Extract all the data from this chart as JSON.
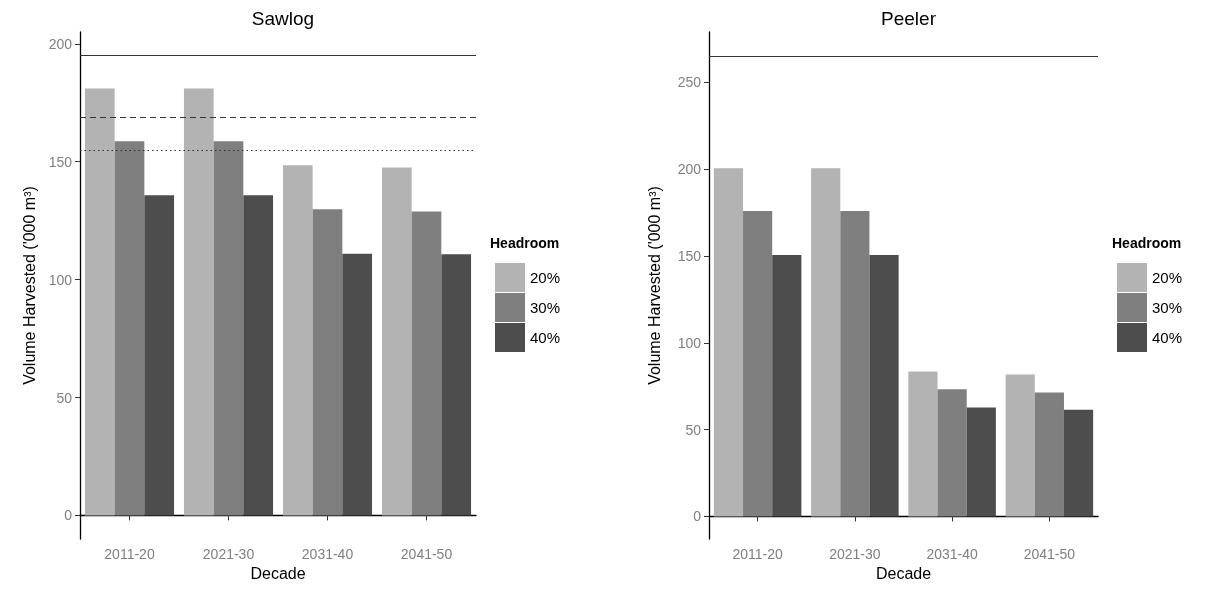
{
  "chart_data": [
    {
      "type": "bar",
      "title": "Sawlog",
      "xlabel": "Decade",
      "ylabel": "Volume Harvested ('000 m³)",
      "legend_title": "Headroom",
      "legend": "right",
      "grid": false,
      "categories": [
        "2011-20",
        "2021-30",
        "2031-40",
        "2041-50"
      ],
      "series": [
        {
          "name": "20%",
          "color": "#b3b3b3",
          "values": [
            181,
            181,
            148.5,
            147.5
          ]
        },
        {
          "name": "30%",
          "color": "#7f7f7f",
          "values": [
            158.7,
            158.7,
            129.8,
            128.9
          ]
        },
        {
          "name": "40%",
          "color": "#4d4d4d",
          "values": [
            135.8,
            135.8,
            111,
            110.7
          ]
        }
      ],
      "ylim": [
        -10,
        205
      ],
      "yticks": [
        0,
        50,
        100,
        150,
        200
      ],
      "ref_lines": [
        {
          "axis": "y",
          "value": 195,
          "color": "#333333",
          "line_style": "solid"
        },
        {
          "axis": "y",
          "value": 169,
          "color": "#333333",
          "line_style": "dashed"
        },
        {
          "axis": "y",
          "value": 155,
          "color": "#333333",
          "line_style": "dotted"
        }
      ]
    },
    {
      "type": "bar",
      "title": "Peeler",
      "xlabel": "Decade",
      "ylabel": "Volume Harvested ('000 m³)",
      "legend_title": "Headroom",
      "legend": "right",
      "grid": false,
      "categories": [
        "2011-20",
        "2021-30",
        "2031-40",
        "2041-50"
      ],
      "series": [
        {
          "name": "20%",
          "color": "#b3b3b3",
          "values": [
            200.6,
            200.6,
            83.5,
            81.7
          ]
        },
        {
          "name": "30%",
          "color": "#7f7f7f",
          "values": [
            175.9,
            175.9,
            73.2,
            71.4
          ]
        },
        {
          "name": "40%",
          "color": "#4d4d4d",
          "values": [
            150.6,
            150.6,
            62.8,
            61.5
          ]
        }
      ],
      "ylim": [
        -13,
        279
      ],
      "yticks": [
        0,
        50,
        100,
        150,
        200,
        250
      ],
      "ref_lines": [
        {
          "axis": "y",
          "value": 265,
          "color": "#333333",
          "line_style": "solid"
        }
      ]
    }
  ]
}
